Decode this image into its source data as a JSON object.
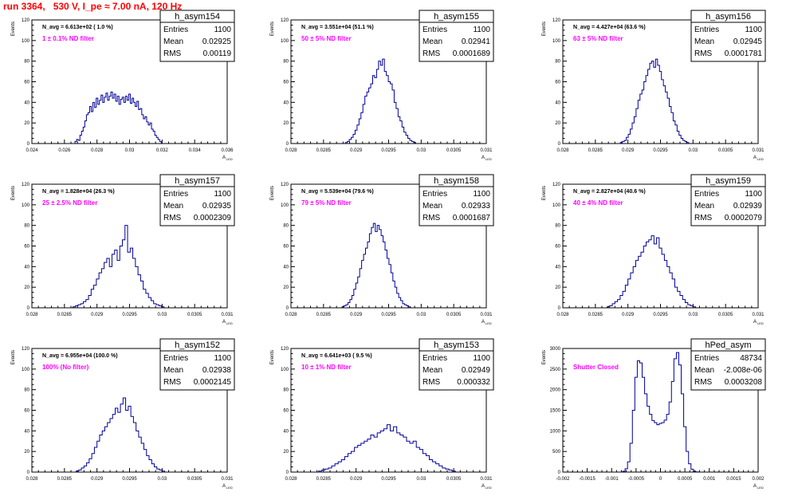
{
  "page_title": "run 3364,   530 V, I_pe ≈ 7.00 nA, 120 Hz",
  "colors": {
    "title": "#ff0000",
    "annotation": "#ff00ff",
    "histogram": "#000099",
    "axis": "#000000"
  },
  "common_labels": {
    "ylabel": "Events",
    "xlabel": "A",
    "xlabel_sub": "LED"
  },
  "stats_labels": {
    "entries": "Entries",
    "mean": "Mean",
    "rms": "RMS"
  },
  "chart_data": [
    {
      "type": "bar",
      "title": "h_asym154",
      "navg": "N_avg = 6.613e+02 ( 1.0 %)",
      "annotation": "1 ± 0.1% ND filter",
      "stats": {
        "entries": "1100",
        "mean": "0.02925",
        "rms": "0.00119"
      },
      "xlim": [
        0.024,
        0.036
      ],
      "xticks": [
        0.024,
        0.026,
        0.028,
        0.03,
        0.032,
        0.034,
        0.036
      ],
      "xtick_labels": [
        "0.024",
        "0.026",
        "0.028",
        "0.03",
        "0.032",
        "0.034",
        "0.036"
      ],
      "ylim": [
        0,
        120
      ],
      "yticks": [
        0,
        20,
        40,
        60,
        80,
        100,
        120
      ],
      "ytick_labels": [
        "0",
        "20",
        "40",
        "60",
        "80",
        "100",
        "120"
      ],
      "hist": {
        "x": [
          0.0267,
          0.0268,
          0.0269,
          0.027,
          0.0271,
          0.0272,
          0.0273,
          0.0274,
          0.0275,
          0.0276,
          0.0277,
          0.0278,
          0.0279,
          0.028,
          0.0281,
          0.0282,
          0.0283,
          0.0284,
          0.0285,
          0.0286,
          0.0287,
          0.0288,
          0.0289,
          0.029,
          0.0291,
          0.0292,
          0.0293,
          0.0294,
          0.0295,
          0.0296,
          0.0297,
          0.0298,
          0.0299,
          0.03,
          0.0301,
          0.0302,
          0.0303,
          0.0304,
          0.0305,
          0.0306,
          0.0307,
          0.0308,
          0.0309,
          0.031,
          0.0311,
          0.0312,
          0.0313,
          0.0314,
          0.0315,
          0.0316,
          0.0317,
          0.0318,
          0.0319
        ],
        "y": [
          2,
          4,
          3,
          8,
          12,
          16,
          22,
          28,
          30,
          36,
          31,
          40,
          35,
          44,
          38,
          42,
          47,
          40,
          45,
          49,
          42,
          46,
          50,
          44,
          48,
          41,
          46,
          38,
          43,
          45,
          40,
          46,
          42,
          48,
          39,
          44,
          40,
          36,
          41,
          33,
          34,
          28,
          24,
          26,
          21,
          18,
          20,
          14,
          12,
          8,
          6,
          4,
          2
        ]
      }
    },
    {
      "type": "bar",
      "title": "h_asym155",
      "navg": "N_avg = 3.551e+04 (51.1 %)",
      "annotation": "50 ± 5% ND filter",
      "stats": {
        "entries": "1100",
        "mean": "0.02941",
        "rms": "0.0001689"
      },
      "xlim": [
        0.028,
        0.031
      ],
      "xticks": [
        0.028,
        0.0285,
        0.029,
        0.0295,
        0.03,
        0.0305,
        0.031
      ],
      "xtick_labels": [
        "0.028",
        "0.0285",
        "0.029",
        "0.0295",
        "0.03",
        "0.0305",
        "0.031"
      ],
      "ylim": [
        0,
        120
      ],
      "yticks": [
        0,
        20,
        40,
        60,
        80,
        100,
        120
      ],
      "ytick_labels": [
        "0",
        "20",
        "40",
        "60",
        "80",
        "100",
        "120"
      ],
      "hist": {
        "x": [
          0.02885,
          0.02888,
          0.02891,
          0.02894,
          0.02897,
          0.029,
          0.02903,
          0.02906,
          0.02909,
          0.02912,
          0.02915,
          0.02918,
          0.02921,
          0.02924,
          0.02927,
          0.0293,
          0.02933,
          0.02936,
          0.02939,
          0.02942,
          0.02945,
          0.02948,
          0.02951,
          0.02954,
          0.02957,
          0.0296,
          0.02963,
          0.02966,
          0.02969,
          0.02972,
          0.02975,
          0.02978,
          0.02981,
          0.02984,
          0.02987,
          0.0299
        ],
        "y": [
          1,
          2,
          4,
          6,
          9,
          13,
          18,
          24,
          30,
          38,
          46,
          50,
          54,
          58,
          66,
          64,
          72,
          80,
          76,
          82,
          70,
          66,
          60,
          58,
          52,
          40,
          34,
          26,
          22,
          16,
          11,
          8,
          5,
          3,
          2,
          1
        ]
      }
    },
    {
      "type": "bar",
      "title": "h_asym156",
      "navg": "N_avg = 4.427e+04 (63.6 %)",
      "annotation": "63 ± 5% ND filter",
      "stats": {
        "entries": "1100",
        "mean": "0.02945",
        "rms": "0.0001781"
      },
      "xlim": [
        0.028,
        0.031
      ],
      "xticks": [
        0.028,
        0.0285,
        0.029,
        0.0295,
        0.03,
        0.0305,
        0.031
      ],
      "xtick_labels": [
        "0.028",
        "0.0285",
        "0.029",
        "0.0295",
        "0.03",
        "0.0305",
        "0.031"
      ],
      "ylim": [
        0,
        120
      ],
      "yticks": [
        0,
        20,
        40,
        60,
        80,
        100,
        120
      ],
      "ytick_labels": [
        "0",
        "20",
        "40",
        "60",
        "80",
        "100",
        "120"
      ],
      "hist": {
        "x": [
          0.0289,
          0.02893,
          0.02896,
          0.02899,
          0.02902,
          0.02905,
          0.02908,
          0.02911,
          0.02914,
          0.02917,
          0.0292,
          0.02923,
          0.02926,
          0.02929,
          0.02932,
          0.02935,
          0.02938,
          0.02941,
          0.02944,
          0.02947,
          0.0295,
          0.02953,
          0.02956,
          0.02959,
          0.02962,
          0.02965,
          0.02968,
          0.02971,
          0.02974,
          0.02977,
          0.0298,
          0.02983,
          0.02986,
          0.02989,
          0.02992
        ],
        "y": [
          1,
          2,
          3,
          6,
          9,
          14,
          20,
          26,
          34,
          42,
          48,
          52,
          60,
          66,
          72,
          78,
          80,
          74,
          82,
          76,
          70,
          62,
          56,
          50,
          44,
          36,
          30,
          22,
          18,
          12,
          8,
          5,
          3,
          2,
          1
        ]
      }
    },
    {
      "type": "bar",
      "title": "h_asym157",
      "navg": "N_avg = 1.828e+04 (26.3 %)",
      "annotation": "25 ± 2.5% ND filter",
      "stats": {
        "entries": "1100",
        "mean": "0.02935",
        "rms": "0.0002309"
      },
      "xlim": [
        0.028,
        0.031
      ],
      "xticks": [
        0.028,
        0.0285,
        0.029,
        0.0295,
        0.03,
        0.0305,
        0.031
      ],
      "xtick_labels": [
        "0.028",
        "0.0285",
        "0.029",
        "0.0295",
        "0.03",
        "0.0305",
        "0.031"
      ],
      "ylim": [
        0,
        120
      ],
      "yticks": [
        0,
        20,
        40,
        60,
        80,
        100,
        120
      ],
      "ytick_labels": [
        "0",
        "20",
        "40",
        "60",
        "80",
        "100",
        "120"
      ],
      "hist": {
        "x": [
          0.02865,
          0.02869,
          0.02873,
          0.02877,
          0.02881,
          0.02885,
          0.02889,
          0.02893,
          0.02897,
          0.02901,
          0.02905,
          0.02909,
          0.02913,
          0.02917,
          0.02921,
          0.02925,
          0.02929,
          0.02933,
          0.02937,
          0.02941,
          0.02945,
          0.02949,
          0.02953,
          0.02957,
          0.02961,
          0.02965,
          0.02969,
          0.02973,
          0.02977,
          0.02981,
          0.02985,
          0.02989,
          0.02993,
          0.02997,
          0.03001
        ],
        "y": [
          1,
          2,
          3,
          4,
          6,
          8,
          12,
          18,
          22,
          28,
          34,
          38,
          44,
          48,
          40,
          52,
          56,
          46,
          60,
          66,
          80,
          54,
          58,
          48,
          40,
          32,
          26,
          18,
          14,
          10,
          7,
          4,
          3,
          2,
          1
        ]
      }
    },
    {
      "type": "bar",
      "title": "h_asym158",
      "navg": "N_avg = 5.539e+04 (79.6 %)",
      "annotation": "79 ± 5% ND filter",
      "stats": {
        "entries": "1100",
        "mean": "0.02933",
        "rms": "0.0001687"
      },
      "xlim": [
        0.028,
        0.031
      ],
      "xticks": [
        0.028,
        0.0285,
        0.029,
        0.0295,
        0.03,
        0.0305,
        0.031
      ],
      "xtick_labels": [
        "0.028",
        "0.0285",
        "0.029",
        "0.0295",
        "0.03",
        "0.0305",
        "0.031"
      ],
      "ylim": [
        0,
        120
      ],
      "yticks": [
        0,
        20,
        40,
        60,
        80,
        100,
        120
      ],
      "ytick_labels": [
        "0",
        "20",
        "40",
        "60",
        "80",
        "100",
        "120"
      ],
      "hist": {
        "x": [
          0.0288,
          0.02883,
          0.02886,
          0.02889,
          0.02892,
          0.02895,
          0.02898,
          0.02901,
          0.02904,
          0.02907,
          0.0291,
          0.02913,
          0.02916,
          0.02919,
          0.02922,
          0.02925,
          0.02928,
          0.02931,
          0.02934,
          0.02937,
          0.0294,
          0.02943,
          0.02946,
          0.02949,
          0.02952,
          0.02955,
          0.02958,
          0.02961,
          0.02964,
          0.02967,
          0.0297,
          0.02973,
          0.02976,
          0.02979,
          0.02982
        ],
        "y": [
          1,
          2,
          3,
          5,
          8,
          12,
          18,
          24,
          30,
          38,
          46,
          52,
          58,
          64,
          72,
          78,
          82,
          74,
          80,
          76,
          70,
          64,
          56,
          48,
          42,
          34,
          26,
          20,
          14,
          10,
          7,
          4,
          3,
          2,
          1
        ]
      }
    },
    {
      "type": "bar",
      "title": "h_asym159",
      "navg": "N_avg = 2.827e+04 (40.6 %)",
      "annotation": "40 ± 4% ND filter",
      "stats": {
        "entries": "1100",
        "mean": "0.02939",
        "rms": "0.0002079"
      },
      "xlim": [
        0.028,
        0.031
      ],
      "xticks": [
        0.028,
        0.0285,
        0.029,
        0.0295,
        0.03,
        0.0305,
        0.031
      ],
      "xtick_labels": [
        "0.028",
        "0.0285",
        "0.029",
        "0.0295",
        "0.03",
        "0.0305",
        "0.031"
      ],
      "ylim": [
        0,
        120
      ],
      "yticks": [
        0,
        20,
        40,
        60,
        80,
        100,
        120
      ],
      "ytick_labels": [
        "0",
        "20",
        "40",
        "60",
        "80",
        "100",
        "120"
      ],
      "hist": {
        "x": [
          0.0287,
          0.02874,
          0.02878,
          0.02882,
          0.02886,
          0.0289,
          0.02894,
          0.02898,
          0.02902,
          0.02906,
          0.0291,
          0.02914,
          0.02918,
          0.02922,
          0.02926,
          0.0293,
          0.02934,
          0.02938,
          0.02942,
          0.02946,
          0.0295,
          0.02954,
          0.02958,
          0.02962,
          0.02966,
          0.0297,
          0.02974,
          0.02978,
          0.02982,
          0.02986,
          0.0299,
          0.02994,
          0.02998,
          0.03002
        ],
        "y": [
          1,
          2,
          4,
          6,
          8,
          12,
          16,
          22,
          28,
          34,
          40,
          46,
          50,
          54,
          60,
          64,
          66,
          70,
          62,
          68,
          58,
          52,
          46,
          40,
          34,
          28,
          20,
          16,
          12,
          8,
          5,
          3,
          2,
          1
        ]
      }
    },
    {
      "type": "bar",
      "title": "h_asym152",
      "navg": "N_avg = 6.955e+04 (100.0 %)",
      "annotation": "100% (No filter)",
      "stats": {
        "entries": "1100",
        "mean": "0.02938",
        "rms": "0.0002145"
      },
      "xlim": [
        0.028,
        0.031
      ],
      "xticks": [
        0.028,
        0.0285,
        0.029,
        0.0295,
        0.03,
        0.0305,
        0.031
      ],
      "xtick_labels": [
        "0.028",
        "0.0285",
        "0.029",
        "0.0295",
        "0.03",
        "0.0305",
        "0.031"
      ],
      "ylim": [
        0,
        120
      ],
      "yticks": [
        0,
        20,
        40,
        60,
        80,
        100,
        120
      ],
      "ytick_labels": [
        "0",
        "20",
        "40",
        "60",
        "80",
        "100",
        "120"
      ],
      "hist": {
        "x": [
          0.0287,
          0.02874,
          0.02878,
          0.02882,
          0.02886,
          0.0289,
          0.02894,
          0.02898,
          0.02902,
          0.02906,
          0.0291,
          0.02914,
          0.02918,
          0.02922,
          0.02926,
          0.0293,
          0.02934,
          0.02938,
          0.02942,
          0.02946,
          0.0295,
          0.02954,
          0.02958,
          0.02962,
          0.02966,
          0.0297,
          0.02974,
          0.02978,
          0.02982,
          0.02986,
          0.0299,
          0.02994,
          0.02998,
          0.03002
        ],
        "y": [
          1,
          2,
          4,
          6,
          9,
          13,
          18,
          24,
          30,
          36,
          40,
          44,
          48,
          52,
          56,
          62,
          58,
          66,
          72,
          60,
          64,
          54,
          48,
          40,
          34,
          28,
          22,
          16,
          12,
          8,
          5,
          3,
          2,
          1
        ]
      }
    },
    {
      "type": "bar",
      "title": "h_asym153",
      "navg": "N_avg = 6.641e+03 ( 9.5 %)",
      "annotation": "10 ± 1% ND filter",
      "stats": {
        "entries": "1100",
        "mean": "0.02949",
        "rms": "0.000332"
      },
      "xlim": [
        0.028,
        0.031
      ],
      "xticks": [
        0.028,
        0.0285,
        0.029,
        0.0295,
        0.03,
        0.0305,
        0.031
      ],
      "xtick_labels": [
        "0.028",
        "0.0285",
        "0.029",
        "0.0295",
        "0.03",
        "0.0305",
        "0.031"
      ],
      "ylim": [
        0,
        120
      ],
      "yticks": [
        0,
        20,
        40,
        60,
        80,
        100,
        120
      ],
      "ytick_labels": [
        "0",
        "20",
        "40",
        "60",
        "80",
        "100",
        "120"
      ],
      "hist": {
        "x": [
          0.02845,
          0.0285,
          0.02855,
          0.0286,
          0.02865,
          0.0287,
          0.02875,
          0.0288,
          0.02885,
          0.0289,
          0.02895,
          0.029,
          0.02905,
          0.0291,
          0.02915,
          0.0292,
          0.02925,
          0.0293,
          0.02935,
          0.0294,
          0.02945,
          0.0295,
          0.02955,
          0.0296,
          0.02965,
          0.0297,
          0.02975,
          0.0298,
          0.02985,
          0.0299,
          0.02995,
          0.03,
          0.03005,
          0.0301,
          0.03015,
          0.0302,
          0.03025,
          0.0303,
          0.03035,
          0.0304,
          0.03045,
          0.0305
        ],
        "y": [
          1,
          2,
          3,
          4,
          6,
          8,
          10,
          12,
          15,
          18,
          20,
          24,
          26,
          28,
          30,
          32,
          36,
          34,
          38,
          40,
          42,
          46,
          40,
          44,
          38,
          36,
          34,
          30,
          28,
          30,
          24,
          22,
          18,
          16,
          12,
          10,
          8,
          6,
          4,
          3,
          2,
          1
        ]
      }
    },
    {
      "type": "bar",
      "title": "hPed_asym",
      "navg": "",
      "annotation": "Shutter Closed",
      "stats": {
        "entries": "48734",
        "mean": "-2.008e-06",
        "rms": "0.0003208"
      },
      "xlim": [
        -0.002,
        0.002
      ],
      "xticks": [
        -0.002,
        -0.0015,
        -0.001,
        -0.0005,
        0,
        0.0005,
        0.001,
        0.0015,
        0.002
      ],
      "xtick_labels": [
        "-0.002",
        "-0.0015",
        "-0.001",
        "-0.0005",
        "0",
        "0.0005",
        "0.001",
        "0.0015",
        "0.002"
      ],
      "ylim": [
        0,
        3000
      ],
      "yticks": [
        0,
        500,
        1000,
        1500,
        2000,
        2500,
        3000
      ],
      "ytick_labels": [
        "0",
        "500",
        "1000",
        "1500",
        "2000",
        "2500",
        "3000"
      ],
      "hist": {
        "x": [
          -0.00075,
          -0.0007,
          -0.00065,
          -0.0006,
          -0.00055,
          -0.0005,
          -0.00045,
          -0.0004,
          -0.00035,
          -0.0003,
          -0.00025,
          -0.0002,
          -0.00015,
          -0.0001,
          -5e-05,
          0,
          5e-05,
          0.0001,
          0.00015,
          0.0002,
          0.00025,
          0.0003,
          0.00035,
          0.0004,
          0.00045,
          0.0005,
          0.00055,
          0.0006,
          0.00065,
          0.0007,
          0.00075
        ],
        "y": [
          20,
          80,
          250,
          700,
          1500,
          2300,
          2700,
          2650,
          2300,
          1900,
          1600,
          1400,
          1250,
          1200,
          1150,
          1180,
          1200,
          1260,
          1400,
          1700,
          2200,
          2750,
          2900,
          2600,
          1900,
          1100,
          500,
          200,
          70,
          20,
          5
        ]
      }
    }
  ]
}
